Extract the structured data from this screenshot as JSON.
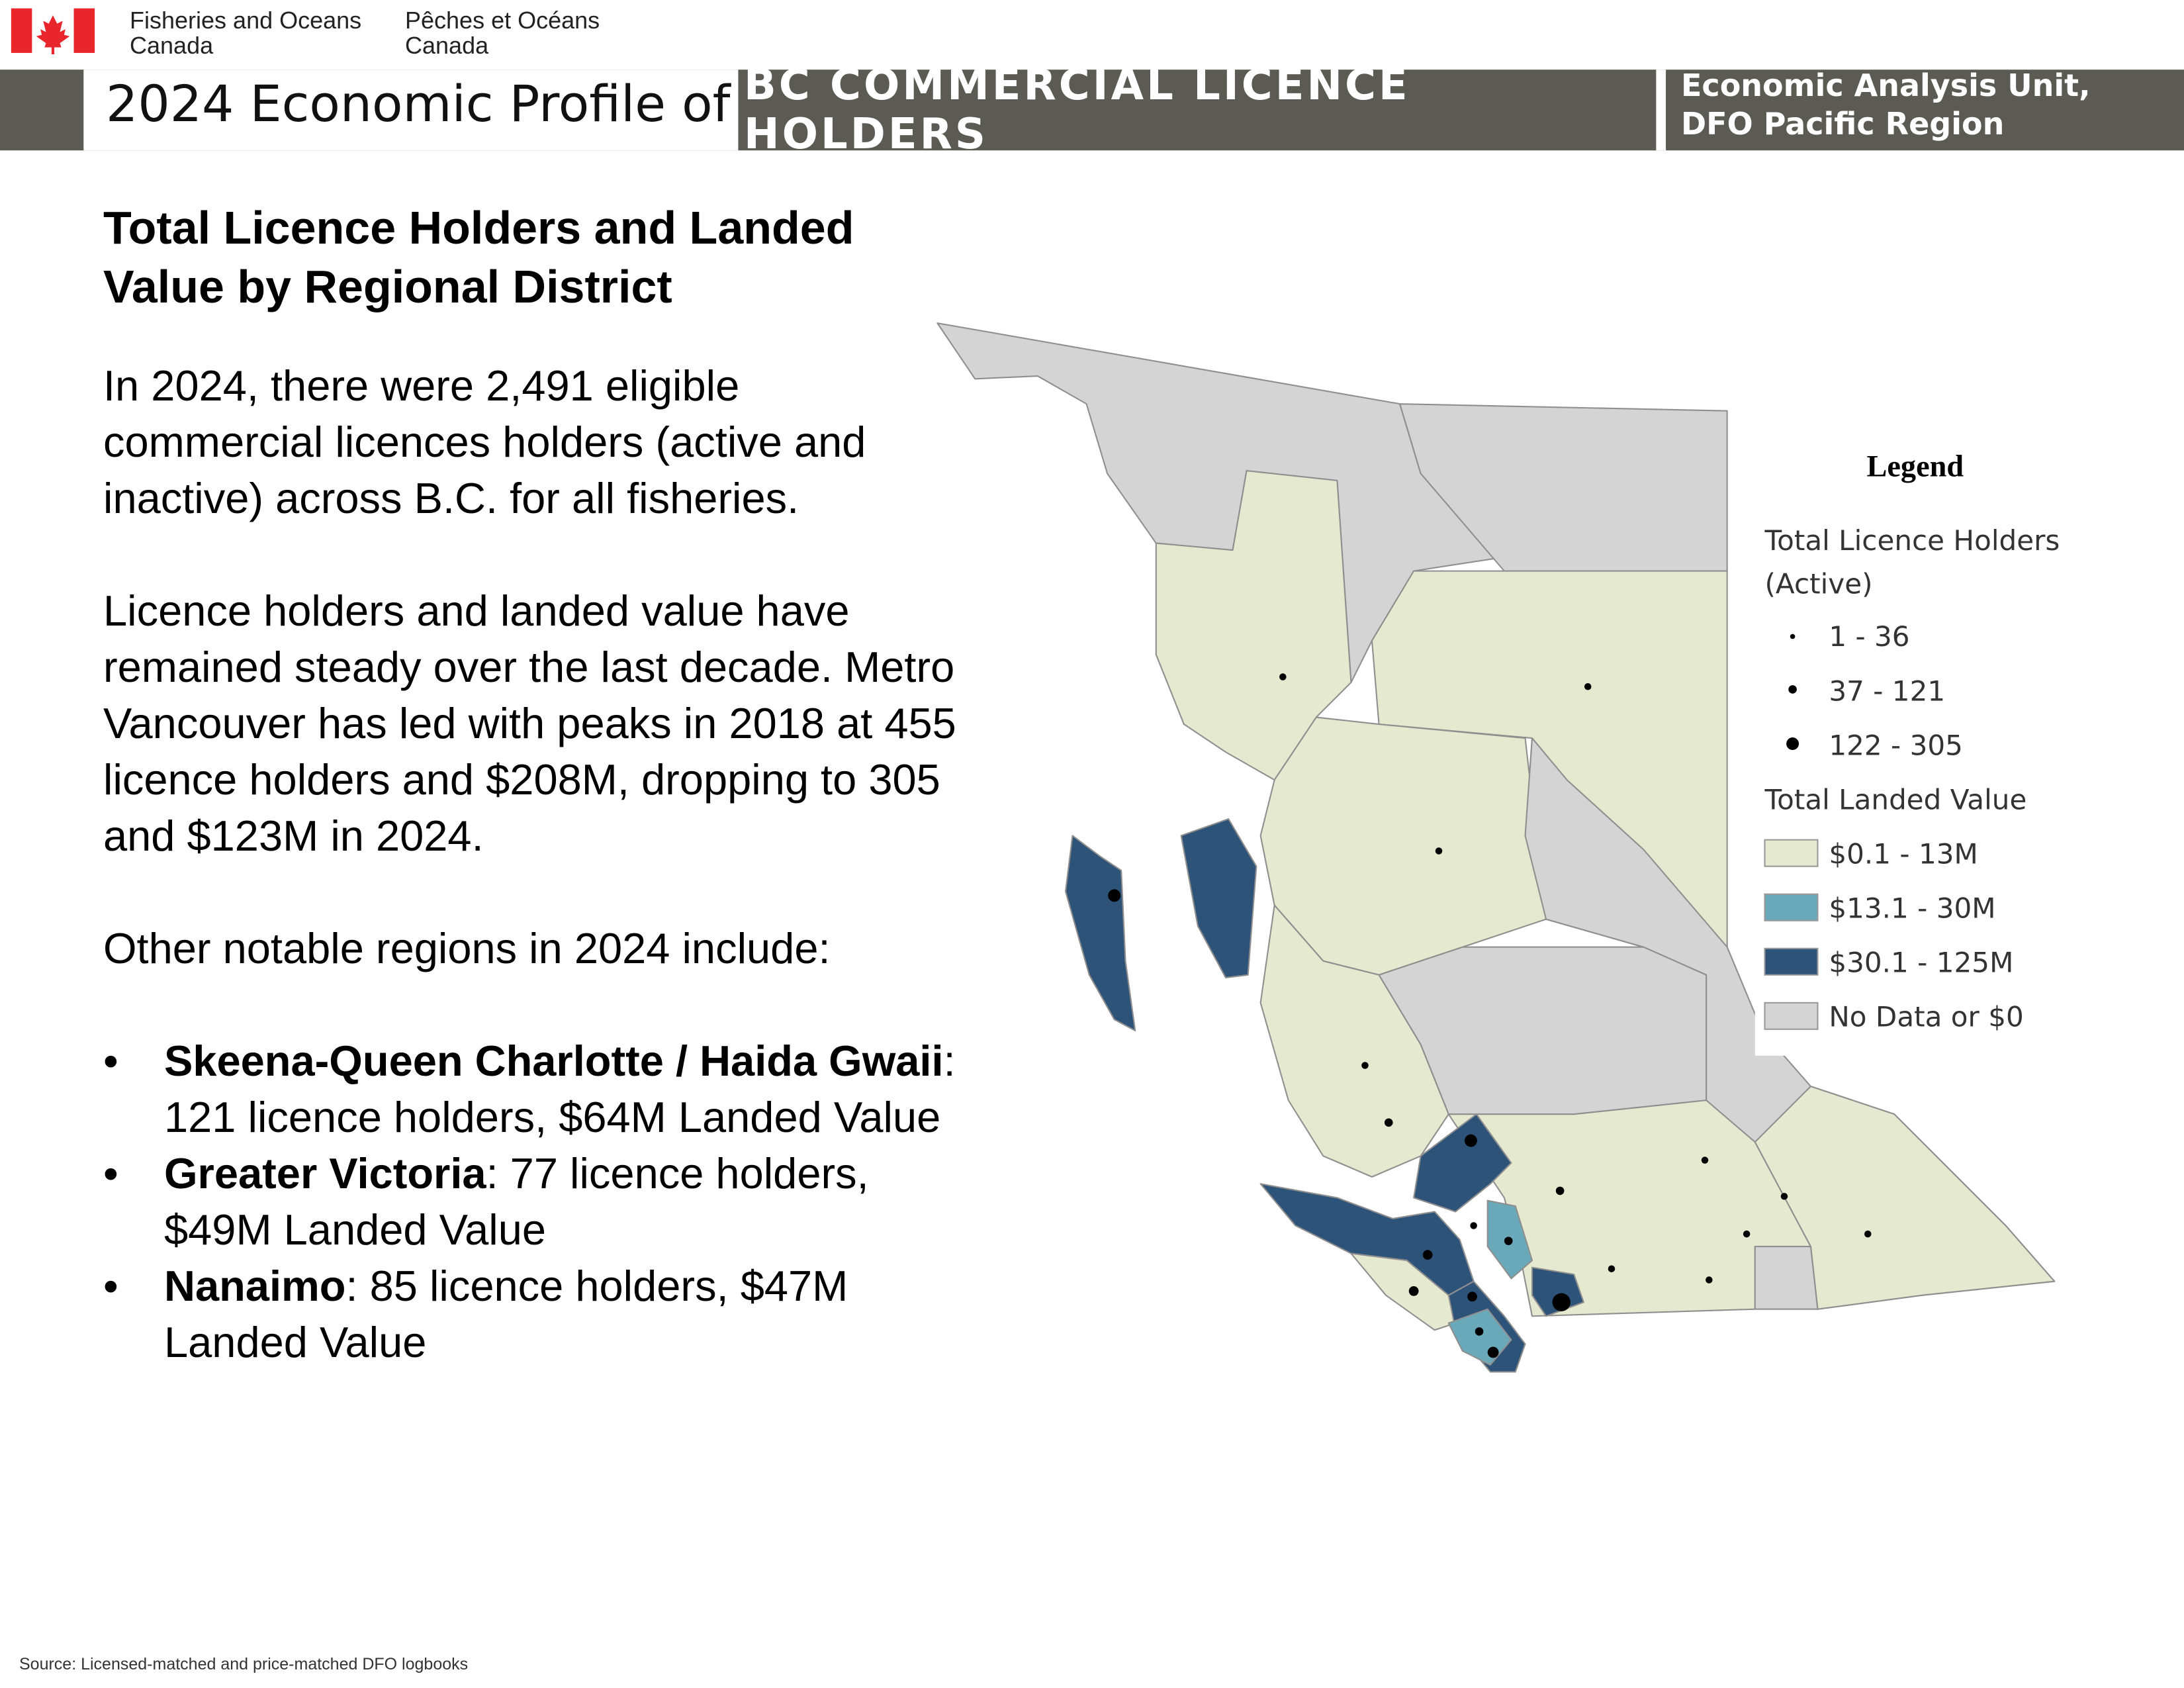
{
  "header": {
    "org_en": "Fisheries and Oceans Canada",
    "org_fr": "Pêches et Océans Canada",
    "profile_prefix": "2024 Economic Profile of",
    "profile_title": "BC COMMERCIAL LICENCE HOLDERS",
    "unit": "Economic Analysis Unit, DFO Pacific Region"
  },
  "section": {
    "heading": "Total Licence Holders and Landed Value by Regional District",
    "paragraphs": [
      "In 2024, there were 2,491 eligible commercial licences holders (active and inactive) across B.C. for all fisheries.",
      "Licence holders and landed value have remained steady over the last decade. Metro Vancouver has led with peaks in 2018 at 455 licence holders and $208M, dropping to 305 and $123M in 2024.",
      "Other notable regions in 2024 include:"
    ],
    "bullets": [
      {
        "bold": "Skeena-Queen Charlotte / Haida Gwaii",
        "text": ": 121 licence holders, $64M Landed Value"
      },
      {
        "bold": "Greater Victoria",
        "text": ": 77 licence holders, $49M Landed Value"
      },
      {
        "bold": "Nanaimo",
        "text": ": 85 licence holders, $47M Landed Value"
      }
    ]
  },
  "legend": {
    "title": "Legend",
    "holders_title": "Total Licence Holders (Active)",
    "holder_classes": [
      "1 - 36",
      "37 - 121",
      "122 - 305"
    ],
    "value_title": "Total Landed Value",
    "value_classes": [
      {
        "label": "$0.1 - 13M",
        "color": "#e5e9cf"
      },
      {
        "label": "$13.1 - 30M",
        "color": "#6aa9b9"
      },
      {
        "label": "$30.1 - 125M",
        "color": "#2e5379"
      },
      {
        "label": "No Data or $0",
        "color": "#d4d4d4"
      }
    ]
  },
  "source": "Source: Licensed-matched and price-matched DFO logbooks"
}
